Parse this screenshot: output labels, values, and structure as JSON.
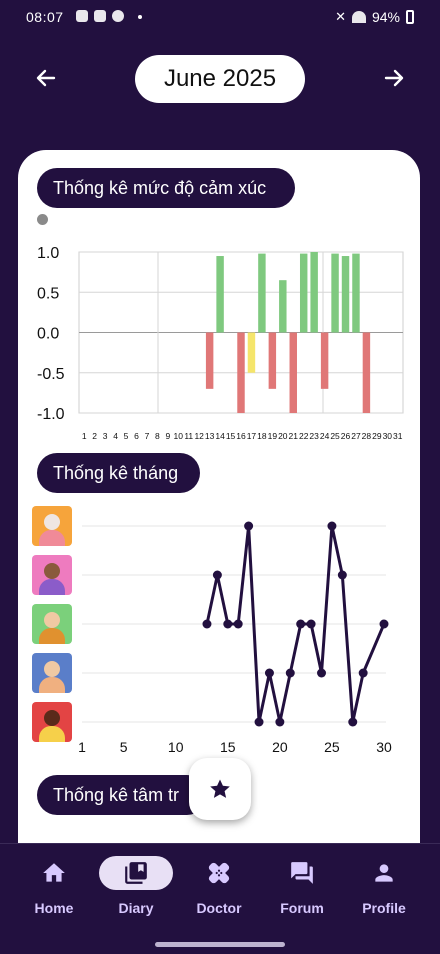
{
  "status_bar": {
    "time": "08:07",
    "battery": "94%"
  },
  "header": {
    "month": "June 2025"
  },
  "sections": {
    "emotion": "Thống kê mức độ cảm xúc",
    "month": "Thống kê tháng",
    "mood": "Thống kê tâm tr"
  },
  "colors": {
    "primary": "#22103f",
    "positive": "#7fc97f",
    "negative": "#e07777",
    "neutral": "#f5e56b"
  },
  "chart_data": [
    {
      "type": "bar",
      "title": "",
      "ylim": [
        -1.0,
        1.0
      ],
      "y_ticks": [
        "1.0",
        "0.5",
        "0.0",
        "-0.5",
        "-1.0"
      ],
      "y_tick_values": [
        1.0,
        0.5,
        0.0,
        -0.5,
        -1.0
      ],
      "categories": [
        "1",
        "2",
        "3",
        "4",
        "5",
        "6",
        "7",
        "8",
        "9",
        "10",
        "11",
        "12",
        "13",
        "14",
        "15",
        "16",
        "17",
        "18",
        "19",
        "20",
        "21",
        "22",
        "23",
        "24",
        "25",
        "26",
        "27",
        "28",
        "29",
        "30",
        "31"
      ],
      "positive_values": [
        0,
        0,
        0,
        0,
        0,
        0,
        0,
        0,
        0,
        0,
        0,
        0,
        0,
        0.95,
        0,
        0,
        0,
        0.98,
        0,
        0.65,
        0,
        0.98,
        1.0,
        0,
        0.98,
        0.95,
        0.98,
        0,
        0,
        0,
        0
      ],
      "negative_values": [
        0,
        0,
        0,
        0,
        0,
        0,
        0,
        0,
        0,
        0,
        0,
        0,
        -0.7,
        0,
        0,
        -1.0,
        0,
        0,
        -0.7,
        0,
        -1.0,
        0,
        0,
        -0.7,
        0,
        0,
        0,
        -1.0,
        0,
        0,
        0
      ],
      "neutral_values": [
        0,
        0,
        0,
        0,
        0,
        0,
        0,
        0,
        0,
        0,
        0,
        0,
        0,
        0,
        0,
        0,
        -0.5,
        0,
        0,
        0,
        0,
        0,
        0,
        0,
        0,
        0,
        0,
        0,
        0,
        0,
        0
      ],
      "grid": true
    },
    {
      "type": "line",
      "title": "",
      "x_ticks": [
        1,
        5,
        10,
        15,
        20,
        25,
        30
      ],
      "xlim": [
        1,
        30
      ],
      "ylim": [
        1,
        5
      ],
      "levels": [
        "very-happy",
        "happy",
        "neutral",
        "sad",
        "angry"
      ],
      "x": [
        13,
        14,
        15,
        16,
        17,
        18,
        19,
        20,
        21,
        22,
        23,
        24,
        25,
        26,
        27,
        28,
        30
      ],
      "y": [
        3,
        4,
        3,
        3,
        5,
        1,
        2,
        1,
        2,
        3,
        3,
        2,
        5,
        4,
        1,
        2,
        3
      ],
      "grid": true
    }
  ],
  "bottom_nav": [
    {
      "label": "Home",
      "icon": "home-icon"
    },
    {
      "label": "Diary",
      "icon": "diary-icon",
      "active": true
    },
    {
      "label": "Doctor",
      "icon": "doctor-icon"
    },
    {
      "label": "Forum",
      "icon": "forum-icon"
    },
    {
      "label": "Profile",
      "icon": "profile-icon"
    }
  ]
}
